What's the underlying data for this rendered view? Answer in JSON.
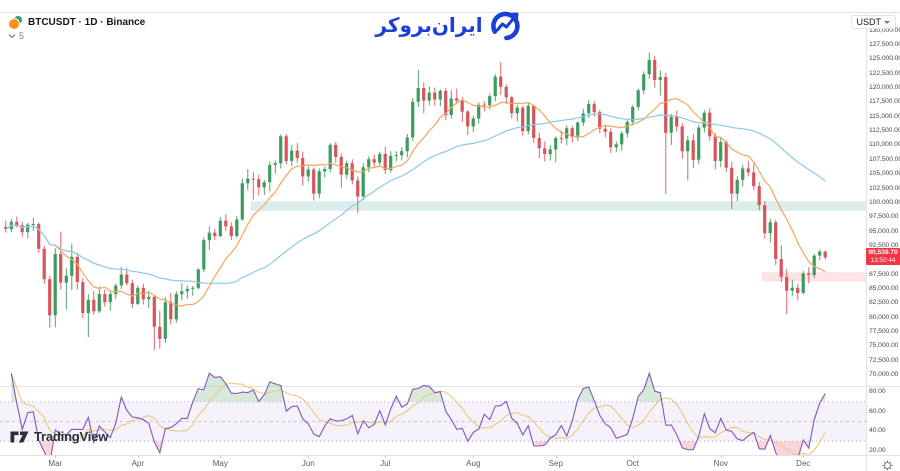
{
  "header": {
    "symbol_title": "BTCUSDT · 1D · Binance",
    "indicators_collapsed_count": "5",
    "currency_button_label": "USDT",
    "brand_logo_text": "ایران‌بروکر"
  },
  "footer": {
    "tradingview_label": "TradingView"
  },
  "price_axis": {
    "labels": [
      {
        "text": "130,000.00",
        "value": 130
      },
      {
        "text": "127,500.00",
        "value": 127.5
      },
      {
        "text": "125,000.00",
        "value": 125
      },
      {
        "text": "122,500.00",
        "value": 122.5
      },
      {
        "text": "120,000.00",
        "value": 120
      },
      {
        "text": "117,500.00",
        "value": 117.5
      },
      {
        "text": "115,000.00",
        "value": 115
      },
      {
        "text": "112,500.00",
        "value": 112.5
      },
      {
        "text": "110,000.00",
        "value": 110
      },
      {
        "text": "107,500.00",
        "value": 107.5
      },
      {
        "text": "105,000.00",
        "value": 105
      },
      {
        "text": "102,500.00",
        "value": 102.5
      },
      {
        "text": "100,000.00",
        "value": 100
      },
      {
        "text": "97,500.00",
        "value": 97.5
      },
      {
        "text": "95,000.00",
        "value": 95
      },
      {
        "text": "92,500.00",
        "value": 92.5
      },
      {
        "text": "87,500.00",
        "value": 87.5
      },
      {
        "text": "85,000.00",
        "value": 85
      },
      {
        "text": "82,500.00",
        "value": 82.5
      },
      {
        "text": "80,000.00",
        "value": 80
      },
      {
        "text": "77,500.00",
        "value": 77.5
      },
      {
        "text": "75,000.00",
        "value": 75
      },
      {
        "text": "72,500.00",
        "value": 72.5
      },
      {
        "text": "70,000.00",
        "value": 70
      }
    ],
    "last_price": {
      "text": "90,539.70",
      "value": 90.5397,
      "countdown": "13:50:44",
      "color": "#f23645"
    }
  },
  "rsi_axis": {
    "labels": [
      {
        "text": "80.00",
        "value": 80
      },
      {
        "text": "60.00",
        "value": 60
      },
      {
        "text": "40.00",
        "value": 40
      },
      {
        "text": "20.00",
        "value": 20
      }
    ]
  },
  "time_axis": {
    "months": [
      {
        "label": "Mar",
        "index": 9
      },
      {
        "label": "Apr",
        "index": 24
      },
      {
        "label": "May",
        "index": 39
      },
      {
        "label": "Jun",
        "index": 55
      },
      {
        "label": "Jul",
        "index": 69
      },
      {
        "label": "Aug",
        "index": 85
      },
      {
        "label": "Sep",
        "index": 100
      },
      {
        "label": "Oct",
        "index": 114
      },
      {
        "label": "Nov",
        "index": 130
      },
      {
        "label": "Dec",
        "index": 145
      }
    ]
  },
  "colors": {
    "up": "#3e9b5f",
    "down": "#d6555a",
    "ma_fast": "#f5a55f",
    "ma_slow": "#8ccae8",
    "rsi": "#7e57c2",
    "rsi_signal": "#eac97e",
    "rsi_band_fill": "rgba(126,87,194,0.08)",
    "rsi_band_line": "#b6a8d6",
    "rsi_mid": "#cdc4e3",
    "rsi_over_fill": "rgba(110,180,120,0.28)",
    "rsi_under_fill": "rgba(240,100,120,0.28)",
    "price_tag": "#f23645",
    "brand_blue": "#1b3fd7",
    "border": "#e0e3eb",
    "btc_orange": "#f7931a",
    "usdt_teal": "#26a17b",
    "tv_dark": "#2a2e39"
  },
  "chart_data": {
    "type": "candlestick",
    "title": "BTCUSDT · 1D · Binance",
    "symbol": "BTCUSDT",
    "interval": "1D",
    "exchange": "Binance",
    "price_unit": "thousand USDT",
    "ylim": [
      70,
      130
    ],
    "grid": false,
    "x_months": [
      "Mar",
      "Apr",
      "May",
      "Jun",
      "Jul",
      "Aug",
      "Sep",
      "Oct",
      "Nov",
      "Dec"
    ],
    "last_price": 90.5397,
    "candles": [
      [
        95.8,
        96.9,
        94.8,
        95.4
      ],
      [
        95.4,
        97.2,
        94.9,
        96.7
      ],
      [
        96.7,
        97.6,
        95.7,
        96.1
      ],
      [
        96.1,
        96.7,
        94.1,
        94.9
      ],
      [
        94.9,
        96.5,
        93.8,
        96.2
      ],
      [
        96.2,
        97.4,
        95.1,
        96.3
      ],
      [
        96.3,
        96.6,
        91.3,
        92.0
      ],
      [
        92.0,
        92.5,
        85.9,
        86.7
      ],
      [
        86.7,
        87.3,
        78.2,
        80.4
      ],
      [
        80.4,
        92.1,
        78.3,
        91.1
      ],
      [
        91.1,
        95.0,
        84.9,
        86.1
      ],
      [
        86.1,
        88.6,
        81.4,
        87.3
      ],
      [
        87.3,
        92.9,
        84.8,
        90.6
      ],
      [
        90.6,
        91.3,
        84.9,
        86.2
      ],
      [
        86.2,
        86.9,
        79.9,
        80.8
      ],
      [
        80.8,
        84.1,
        76.6,
        83.1
      ],
      [
        83.1,
        84.6,
        80.5,
        81.1
      ],
      [
        81.1,
        85.4,
        80.8,
        84.1
      ],
      [
        84.1,
        84.9,
        81.9,
        82.7
      ],
      [
        82.7,
        84.6,
        81.2,
        84.1
      ],
      [
        84.1,
        85.9,
        83.3,
        85.6
      ],
      [
        85.6,
        88.8,
        85.0,
        87.5
      ],
      [
        87.5,
        88.6,
        85.6,
        86.0
      ],
      [
        86.0,
        86.6,
        81.6,
        82.4
      ],
      [
        82.4,
        85.6,
        82.2,
        85.2
      ],
      [
        85.2,
        85.9,
        82.3,
        83.2
      ],
      [
        83.2,
        84.7,
        81.6,
        83.6
      ],
      [
        83.6,
        83.9,
        74.4,
        78.4
      ],
      [
        78.4,
        81.2,
        74.6,
        76.3
      ],
      [
        76.3,
        83.6,
        75.6,
        82.7
      ],
      [
        82.7,
        84.3,
        78.8,
        79.7
      ],
      [
        79.7,
        84.6,
        79.1,
        84.1
      ],
      [
        84.1,
        86.0,
        83.0,
        84.6
      ],
      [
        84.6,
        85.6,
        83.3,
        85.0
      ],
      [
        85.0,
        85.5,
        83.8,
        85.2
      ],
      [
        85.2,
        88.6,
        84.9,
        88.4
      ],
      [
        88.4,
        94.0,
        87.9,
        93.5
      ],
      [
        93.5,
        95.9,
        91.8,
        94.8
      ],
      [
        94.8,
        95.5,
        93.5,
        94.2
      ],
      [
        94.2,
        97.5,
        94.0,
        96.9
      ],
      [
        96.9,
        98.0,
        95.1,
        95.9
      ],
      [
        95.9,
        96.6,
        93.5,
        94.2
      ],
      [
        94.2,
        97.7,
        93.9,
        97.1
      ],
      [
        97.1,
        104.2,
        96.9,
        103.4
      ],
      [
        103.4,
        105.9,
        102.2,
        104.2
      ],
      [
        104.2,
        105.4,
        100.6,
        104.1
      ],
      [
        104.1,
        104.9,
        101.3,
        102.7
      ],
      [
        102.7,
        104.0,
        101.4,
        103.6
      ],
      [
        103.6,
        107.2,
        102.0,
        106.6
      ],
      [
        106.6,
        107.4,
        105.1,
        106.9
      ],
      [
        106.9,
        111.9,
        106.0,
        111.6
      ],
      [
        111.6,
        112.0,
        106.7,
        107.3
      ],
      [
        107.3,
        110.1,
        106.4,
        109.1
      ],
      [
        109.1,
        110.4,
        107.0,
        107.8
      ],
      [
        107.8,
        108.9,
        103.0,
        104.6
      ],
      [
        104.6,
        106.4,
        103.7,
        105.8
      ],
      [
        105.8,
        106.1,
        100.4,
        101.6
      ],
      [
        101.6,
        106.0,
        100.8,
        105.5
      ],
      [
        105.5,
        106.3,
        104.4,
        105.9
      ],
      [
        105.9,
        110.4,
        105.3,
        110.1
      ],
      [
        110.1,
        110.6,
        107.0,
        108.0
      ],
      [
        108.0,
        108.6,
        102.6,
        104.9
      ],
      [
        104.9,
        107.4,
        104.2,
        106.9
      ],
      [
        106.9,
        107.6,
        103.2,
        103.9
      ],
      [
        103.9,
        104.6,
        98.2,
        101.1
      ],
      [
        101.1,
        106.9,
        100.5,
        106.2
      ],
      [
        106.2,
        108.1,
        105.3,
        107.6
      ],
      [
        107.6,
        108.4,
        106.3,
        107.0
      ],
      [
        107.0,
        108.9,
        106.5,
        108.5
      ],
      [
        108.5,
        109.8,
        105.0,
        105.7
      ],
      [
        105.7,
        109.0,
        105.3,
        108.2
      ],
      [
        108.2,
        109.0,
        107.2,
        108.3
      ],
      [
        108.3,
        109.7,
        107.4,
        109.0
      ],
      [
        109.0,
        112.0,
        107.9,
        111.4
      ],
      [
        111.4,
        118.3,
        110.8,
        117.6
      ],
      [
        117.6,
        123.2,
        116.7,
        120.0
      ],
      [
        120.0,
        121.0,
        115.6,
        117.8
      ],
      [
        117.8,
        120.3,
        117.0,
        119.2
      ],
      [
        119.2,
        120.1,
        116.9,
        118.0
      ],
      [
        118.0,
        119.8,
        116.8,
        119.5
      ],
      [
        119.5,
        120.0,
        114.4,
        115.3
      ],
      [
        115.3,
        119.6,
        114.7,
        118.2
      ],
      [
        118.2,
        119.9,
        117.2,
        117.8
      ],
      [
        117.8,
        118.5,
        114.1,
        115.9
      ],
      [
        115.9,
        116.2,
        111.8,
        113.3
      ],
      [
        113.3,
        115.2,
        112.3,
        114.7
      ],
      [
        114.7,
        117.5,
        113.8,
        117.1
      ],
      [
        117.1,
        117.7,
        115.9,
        117.0
      ],
      [
        117.0,
        119.1,
        116.3,
        118.6
      ],
      [
        118.6,
        122.4,
        117.7,
        122.0
      ],
      [
        122.0,
        124.5,
        118.8,
        120.2
      ],
      [
        120.2,
        120.6,
        117.2,
        118.4
      ],
      [
        118.4,
        118.7,
        114.7,
        115.6
      ],
      [
        115.6,
        117.1,
        114.2,
        116.6
      ],
      [
        116.6,
        116.9,
        111.7,
        112.5
      ],
      [
        112.5,
        117.4,
        111.9,
        116.9
      ],
      [
        116.9,
        117.1,
        110.4,
        111.3
      ],
      [
        111.3,
        112.2,
        107.8,
        109.5
      ],
      [
        109.5,
        110.7,
        107.2,
        108.5
      ],
      [
        108.5,
        110.0,
        107.4,
        109.3
      ],
      [
        109.3,
        111.6,
        107.1,
        111.3
      ],
      [
        111.3,
        112.6,
        110.3,
        111.2
      ],
      [
        111.2,
        113.5,
        110.0,
        113.0
      ],
      [
        113.0,
        113.4,
        110.5,
        111.4
      ],
      [
        111.4,
        114.2,
        110.7,
        114.0
      ],
      [
        114.0,
        116.4,
        113.4,
        115.6
      ],
      [
        115.6,
        117.9,
        114.8,
        117.2
      ],
      [
        117.2,
        117.8,
        115.0,
        115.8
      ],
      [
        115.8,
        116.2,
        112.2,
        112.9
      ],
      [
        112.9,
        113.6,
        111.4,
        112.4
      ],
      [
        112.4,
        113.0,
        108.7,
        109.7
      ],
      [
        109.7,
        110.7,
        108.8,
        110.2
      ],
      [
        110.2,
        112.5,
        109.1,
        112.1
      ],
      [
        112.1,
        114.6,
        111.4,
        114.1
      ],
      [
        114.1,
        117.1,
        113.5,
        116.7
      ],
      [
        116.7,
        119.9,
        116.1,
        119.6
      ],
      [
        119.6,
        122.9,
        118.9,
        122.4
      ],
      [
        122.4,
        126.2,
        121.6,
        124.9
      ],
      [
        124.9,
        125.6,
        120.1,
        121.4
      ],
      [
        121.4,
        123.1,
        118.7,
        121.9
      ],
      [
        121.9,
        122.6,
        101.5,
        112.2
      ],
      [
        112.2,
        115.5,
        110.1,
        115.0
      ],
      [
        115.0,
        116.1,
        112.4,
        113.3
      ],
      [
        113.3,
        113.9,
        107.7,
        109.0
      ],
      [
        109.0,
        111.6,
        103.9,
        110.9
      ],
      [
        110.9,
        112.0,
        106.1,
        107.5
      ],
      [
        107.5,
        113.6,
        106.8,
        113.1
      ],
      [
        113.1,
        116.2,
        112.2,
        115.7
      ],
      [
        115.7,
        116.5,
        110.8,
        111.6
      ],
      [
        111.6,
        112.1,
        105.9,
        107.3
      ],
      [
        107.3,
        111.5,
        106.2,
        110.6
      ],
      [
        110.6,
        110.9,
        105.4,
        106.1
      ],
      [
        106.1,
        107.1,
        98.9,
        101.6
      ],
      [
        101.6,
        104.6,
        100.3,
        104.0
      ],
      [
        104.0,
        106.6,
        102.8,
        106.0
      ],
      [
        106.0,
        107.3,
        104.6,
        105.3
      ],
      [
        105.3,
        106.9,
        102.2,
        102.9
      ],
      [
        102.9,
        103.6,
        98.7,
        99.6
      ],
      [
        99.6,
        100.3,
        93.8,
        94.7
      ],
      [
        94.7,
        97.2,
        93.1,
        96.6
      ],
      [
        96.6,
        97.0,
        89.1,
        90.2
      ],
      [
        90.2,
        92.6,
        86.2,
        87.1
      ],
      [
        87.1,
        88.5,
        80.6,
        84.7
      ],
      [
        84.7,
        86.6,
        83.8,
        85.2
      ],
      [
        85.2,
        85.9,
        83.0,
        84.3
      ],
      [
        84.3,
        88.1,
        84.0,
        87.7
      ],
      [
        87.7,
        88.8,
        86.0,
        87.4
      ],
      [
        87.4,
        91.1,
        86.9,
        90.8
      ],
      [
        90.8,
        91.9,
        90.0,
        91.5
      ],
      [
        91.5,
        91.7,
        90.1,
        90.5
      ]
    ],
    "overlays": [
      {
        "name": "ma-fast",
        "period": 10,
        "color": "#f5a55f"
      },
      {
        "name": "ma-slow",
        "period": 35,
        "color": "#8ccae8"
      }
    ],
    "zones": [
      {
        "name": "resistance-zone",
        "price_range": [
          98.6,
          100.3
        ],
        "start_index": 45,
        "color": "rgba(32,150,130,0.16)"
      },
      {
        "name": "support-zone",
        "price_range": [
          86.3,
          87.9
        ],
        "start_index": 138,
        "color": "rgba(242,80,100,0.16)"
      }
    ],
    "indicator": {
      "type": "rsi",
      "period": 7,
      "signal_period": 7,
      "range": [
        20,
        80
      ],
      "bands": [
        30,
        50,
        70
      ],
      "legend_position": "hidden"
    }
  }
}
